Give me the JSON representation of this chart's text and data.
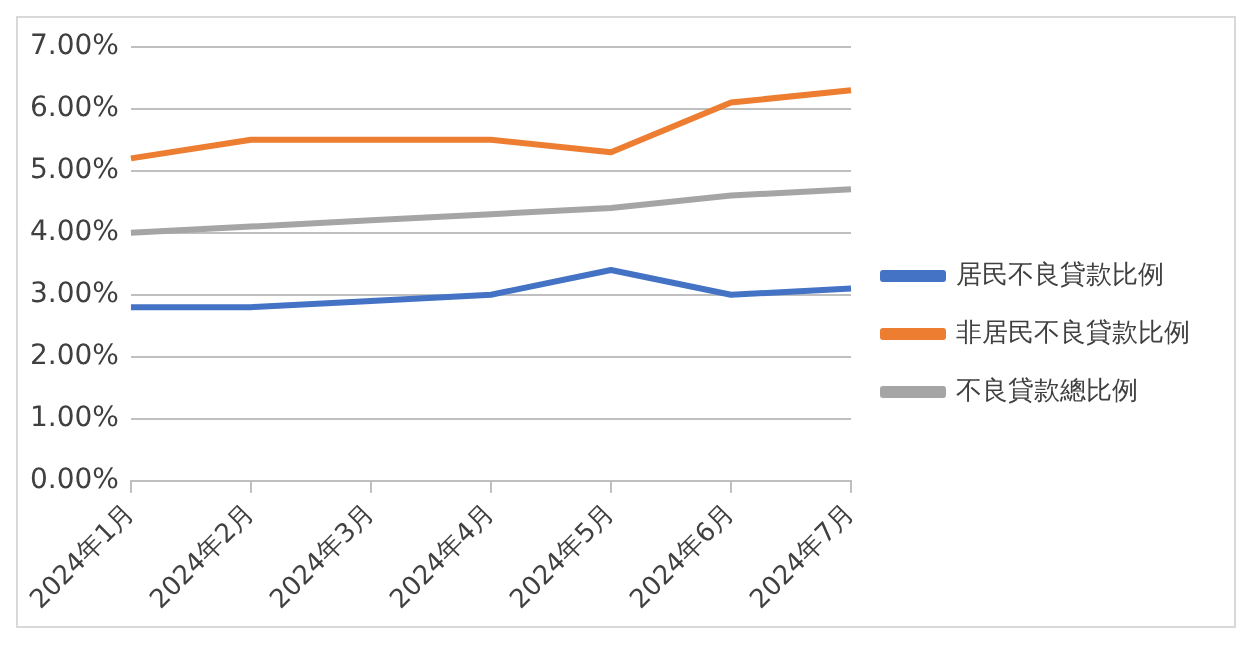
{
  "chart_data": {
    "type": "line",
    "categories": [
      "2024年1月",
      "2024年2月",
      "2024年3月",
      "2024年4月",
      "2024年5月",
      "2024年6月",
      "2024年7月"
    ],
    "series": [
      {
        "name": "居民不良貸款比例",
        "color": "#4472c4",
        "values": [
          2.8,
          2.8,
          2.9,
          3.0,
          3.4,
          3.0,
          3.1
        ]
      },
      {
        "name": "非居民不良貸款比例",
        "color": "#ed7d31",
        "values": [
          5.2,
          5.5,
          5.5,
          5.5,
          5.3,
          6.1,
          6.3
        ]
      },
      {
        "name": "不良貸款總比例",
        "color": "#a5a5a5",
        "values": [
          4.0,
          4.1,
          4.2,
          4.3,
          4.4,
          4.6,
          4.7
        ]
      }
    ],
    "ylim": [
      0,
      7
    ],
    "yticks": [
      {
        "value": 0,
        "label": "0.00%"
      },
      {
        "value": 1,
        "label": "1.00%"
      },
      {
        "value": 2,
        "label": "2.00%"
      },
      {
        "value": 3,
        "label": "3.00%"
      },
      {
        "value": 4,
        "label": "4.00%"
      },
      {
        "value": 5,
        "label": "5.00%"
      },
      {
        "value": 6,
        "label": "6.00%"
      },
      {
        "value": 7,
        "label": "7.00%"
      }
    ],
    "grid": "y",
    "legend": "right",
    "marker": "none",
    "line_style": "solid"
  }
}
